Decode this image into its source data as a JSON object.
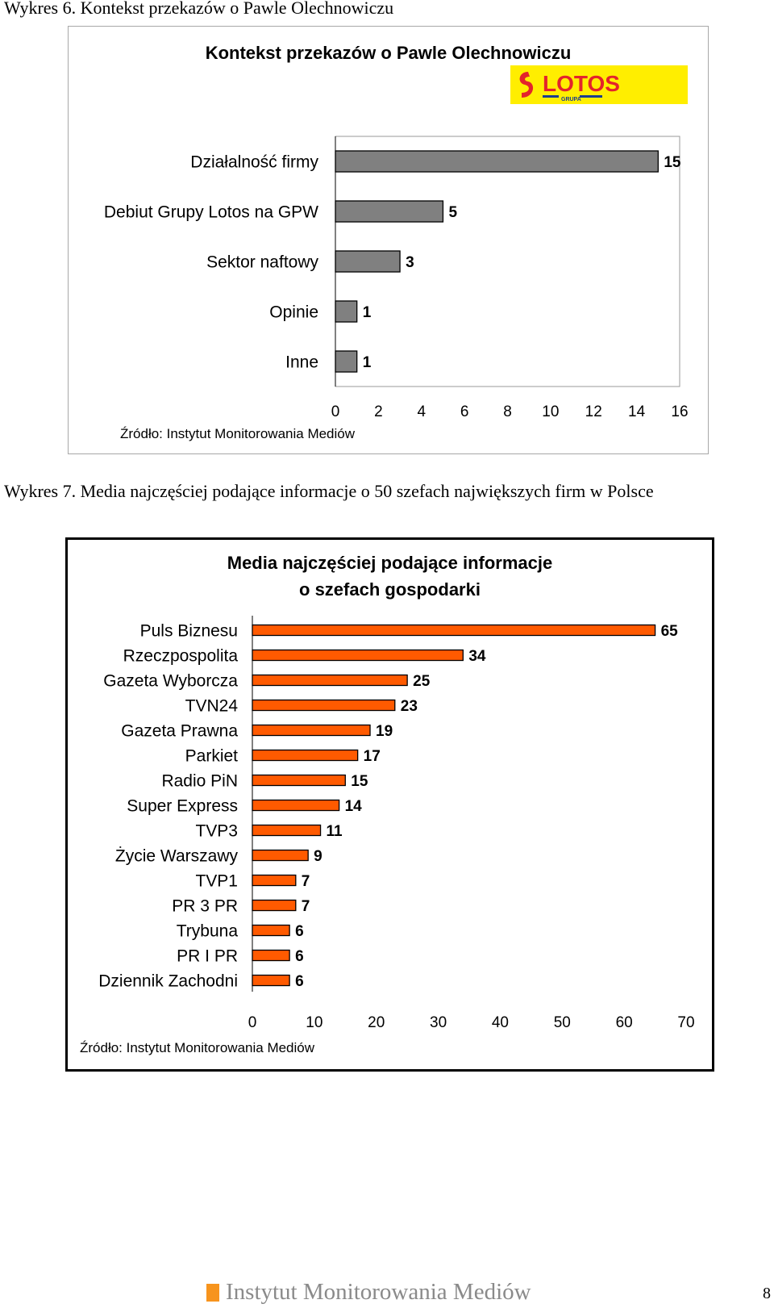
{
  "captions": {
    "chart1": "Wykres 6. Kontekst przekazów o Pawle Olechnowiczu",
    "chart2": "Wykres 7. Media najczęściej podające informacje o 50 szefach największych firm w Polsce"
  },
  "logo": {
    "text": "LOTOS",
    "subtext": "GRUPA",
    "background": "#ffee00",
    "mark_color": "#e3242b",
    "accent_color": "#1b3d8f"
  },
  "chart_data": [
    {
      "type": "bar",
      "orientation": "horizontal",
      "title": "Kontekst przekazów o Pawle Olechnowiczu",
      "categories": [
        "Działalność firmy",
        "Debiut Grupy Lotos na GPW",
        "Sektor naftowy",
        "Opinie",
        "Inne"
      ],
      "values": [
        15,
        5,
        3,
        1,
        1
      ],
      "xlim": [
        0,
        16
      ],
      "xticks": [
        0,
        2,
        4,
        6,
        8,
        10,
        12,
        14,
        16
      ],
      "bar_color": "#808080",
      "source": "Źródło: Instytut Monitorowania Mediów"
    },
    {
      "type": "bar",
      "orientation": "horizontal",
      "title_lines": [
        "Media najczęściej podające informacje",
        "o szefach gospodarki"
      ],
      "categories": [
        "Puls Biznesu",
        "Rzeczpospolita",
        "Gazeta Wyborcza",
        "TVN24",
        "Gazeta Prawna",
        "Parkiet",
        "Radio PiN",
        "Super Express",
        "TVP3",
        "Życie Warszawy",
        "TVP1",
        "PR 3 PR",
        "Trybuna",
        "PR I PR",
        "Dziennik Zachodni"
      ],
      "values": [
        65,
        34,
        25,
        23,
        19,
        17,
        15,
        14,
        11,
        9,
        7,
        7,
        6,
        6,
        6
      ],
      "xlim": [
        0,
        70
      ],
      "xticks": [
        0,
        10,
        20,
        30,
        40,
        50,
        60,
        70
      ],
      "bar_color": "#ff5a00",
      "source": "Źródło: Instytut Monitorowania Mediów"
    }
  ],
  "footer": {
    "brand": "Instytut Monitorowania Mediów",
    "page_number": "8",
    "accent_color": "#f7941d"
  }
}
